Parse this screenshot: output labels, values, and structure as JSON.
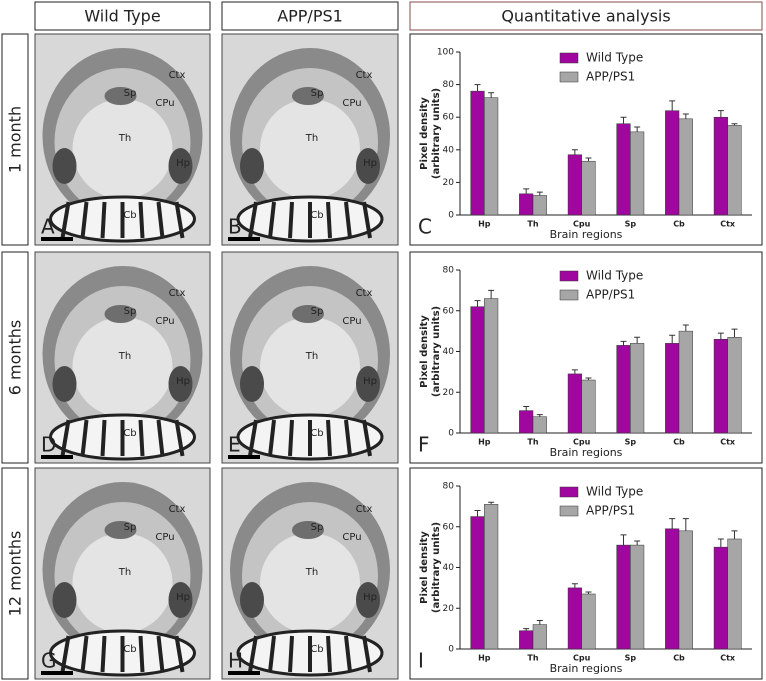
{
  "headers": [
    "Wild Type",
    "APP/PS1",
    "Quantitative analysis"
  ],
  "rows": [
    {
      "label": "1 month",
      "panels": [
        {
          "letter": "A",
          "labels": [
            "Sp",
            "CPu",
            "Ctx",
            "Th",
            "Hp",
            "Cb"
          ]
        },
        {
          "letter": "B",
          "labels": [
            "Sp",
            "CPu",
            "Ctx",
            "Th",
            "Hp",
            "Cb"
          ]
        }
      ]
    },
    {
      "label": "6 months",
      "panels": [
        {
          "letter": "D",
          "labels": [
            "Sp",
            "CPu",
            "Ctx",
            "Th",
            "Hp",
            "Cb"
          ]
        },
        {
          "letter": "E",
          "labels": [
            "Sp",
            "CPu",
            "Ctx",
            "Th",
            "Hp",
            "Cb"
          ]
        }
      ]
    },
    {
      "label": "12 months",
      "panels": [
        {
          "letter": "G",
          "labels": [
            "Sp",
            "CPu",
            "Ctx",
            "Th",
            "Hp",
            "Cb"
          ]
        },
        {
          "letter": "H",
          "labels": [
            "Sp",
            "CPu",
            "Ctx",
            "Th",
            "Hp",
            "Cb"
          ]
        }
      ]
    }
  ],
  "chart_data": [
    {
      "type": "bar",
      "letter": "C",
      "ylabel": [
        "Pixel density",
        "(arbitrary units)"
      ],
      "xlabel": "Brain regions",
      "categories": [
        "Hp",
        "Th",
        "Cpu",
        "Sp",
        "Cb",
        "Ctx"
      ],
      "ylim": [
        0,
        100
      ],
      "yticks": [
        0,
        20,
        40,
        60,
        80,
        100
      ],
      "legend": "top",
      "series": [
        {
          "name": "Wild Type",
          "color": "#a0079e",
          "values": [
            76,
            13,
            37,
            56,
            64,
            60
          ],
          "errors": [
            4,
            3,
            3,
            4,
            6,
            4
          ]
        },
        {
          "name": "APP/PS1",
          "color": "#a6a6a6",
          "values": [
            72,
            12,
            33,
            51,
            59,
            55
          ],
          "errors": [
            3,
            2,
            2,
            3,
            3,
            1
          ]
        }
      ]
    },
    {
      "type": "bar",
      "letter": "F",
      "ylabel": [
        "Pixel density",
        "(arbitrary units)"
      ],
      "xlabel": "Brain regions",
      "categories": [
        "Hp",
        "Th",
        "Cpu",
        "Sp",
        "Cb",
        "Ctx"
      ],
      "ylim": [
        0,
        80
      ],
      "yticks": [
        0,
        20,
        40,
        60,
        80
      ],
      "legend": "top",
      "series": [
        {
          "name": "Wild Type",
          "color": "#a0079e",
          "values": [
            62,
            11,
            29,
            43,
            44,
            46
          ],
          "errors": [
            3,
            2,
            2,
            2,
            4,
            3
          ]
        },
        {
          "name": "APP/PS1",
          "color": "#a6a6a6",
          "values": [
            66,
            8,
            26,
            44,
            50,
            47
          ],
          "errors": [
            4,
            1,
            1,
            3,
            3,
            4
          ]
        }
      ]
    },
    {
      "type": "bar",
      "letter": "I",
      "ylabel": [
        "Pixel density",
        "(arbitrary units)"
      ],
      "xlabel": "Brain regions",
      "categories": [
        "Hp",
        "Th",
        "Cpu",
        "Sp",
        "Cb",
        "Ctx"
      ],
      "ylim": [
        0,
        80
      ],
      "yticks": [
        0,
        20,
        40,
        60,
        80
      ],
      "legend": "top",
      "series": [
        {
          "name": "Wild Type",
          "color": "#a0079e",
          "values": [
            65,
            9,
            30,
            51,
            59,
            50
          ],
          "errors": [
            3,
            1,
            2,
            5,
            5,
            4
          ]
        },
        {
          "name": "APP/PS1",
          "color": "#a6a6a6",
          "values": [
            71,
            12,
            27,
            51,
            58,
            54
          ],
          "errors": [
            1,
            2,
            1,
            2,
            6,
            4
          ]
        }
      ]
    }
  ]
}
